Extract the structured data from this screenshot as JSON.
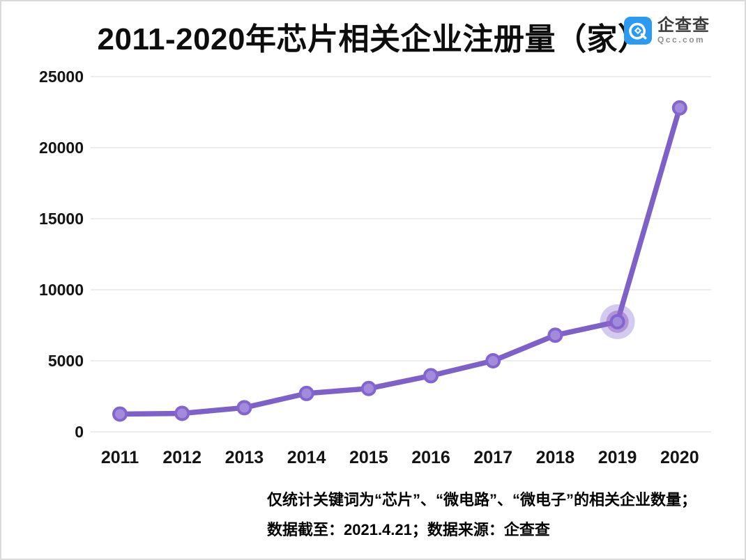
{
  "header": {
    "title": "2011-2020年芯片相关企业注册量（家）",
    "logo": {
      "icon": "qcc-q-spiral-icon",
      "name_text": "企查查",
      "domain_text": "Qcc.com"
    }
  },
  "colors": {
    "logo_blue": "#2b9bf2",
    "page_border": "#dadada",
    "title_text": "#0d0d0d"
  },
  "chart_data": {
    "type": "line",
    "title": "2011-2020年芯片相关企业注册量（家）",
    "categories": [
      "2011",
      "2012",
      "2013",
      "2014",
      "2015",
      "2016",
      "2017",
      "2018",
      "2019",
      "2020"
    ],
    "series": [
      {
        "name": "芯片相关企业注册量（家）",
        "values": [
          1250,
          1300,
          1700,
          2700,
          3050,
          3950,
          5000,
          6800,
          7750,
          22800
        ]
      }
    ],
    "highlighted_category": "2019",
    "xlabel": "",
    "ylabel": "",
    "ylim": [
      0,
      25000
    ],
    "yticks": [
      0,
      5000,
      10000,
      15000,
      20000,
      25000
    ],
    "grid": true,
    "legend_position": "none",
    "colors": {
      "line": "#7d61c8",
      "marker_fill": "#a38bdc",
      "marker_stroke": "#8365cf",
      "halo_outer": "rgba(131,101,207,0.35)",
      "halo_inner": "rgba(147,102,196,0.55)",
      "grid_line": "#ededed",
      "axis_text": "#141414"
    }
  },
  "footer": {
    "line1": "仅统计关键词为“芯片”、“微电路”、“微电子”的相关企业数量；",
    "line2": "数据截至：2021.4.21；数据来源：企查查"
  }
}
